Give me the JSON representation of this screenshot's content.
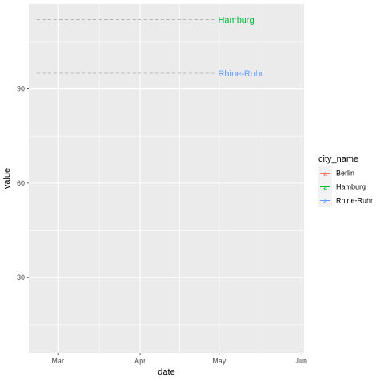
{
  "chart_data": {
    "type": "line",
    "xlabel": "date",
    "ylabel": "value",
    "xlim": [
      "2020-02-19",
      "2020-06-02"
    ],
    "ylim": [
      6,
      117
    ],
    "x_ticks": [
      {
        "date": "2020-03-01",
        "label": "Mar"
      },
      {
        "date": "2020-04-01",
        "label": "Apr"
      },
      {
        "date": "2020-05-01",
        "label": "May"
      },
      {
        "date": "2020-06-01",
        "label": "Jun"
      }
    ],
    "y_ticks": [
      30,
      60,
      90
    ],
    "grid": true,
    "legend": {
      "title": "city_name",
      "position": "right",
      "entries": [
        {
          "name": "Berlin",
          "color": "#F8766D"
        },
        {
          "name": "Hamburg",
          "color": "#00BA38"
        },
        {
          "name": "Rhine-Ruhr",
          "color": "#619CFF"
        }
      ]
    },
    "series": [
      {
        "name": "Hamburg",
        "color": "#00BA38",
        "label": "Hamburg",
        "reference_line": {
          "y": 112,
          "x_start": "2020-02-22",
          "x_end": "2020-04-30"
        }
      },
      {
        "name": "Rhine-Ruhr",
        "color": "#619CFF",
        "label": "Rhine-Ruhr",
        "reference_line": {
          "y": 95,
          "x_start": "2020-02-22",
          "x_end": "2020-04-30"
        }
      }
    ],
    "colors": {
      "panel": "#EBEBEB",
      "grid": "#FFFFFF",
      "reference_line": "#AAAAAA"
    }
  }
}
